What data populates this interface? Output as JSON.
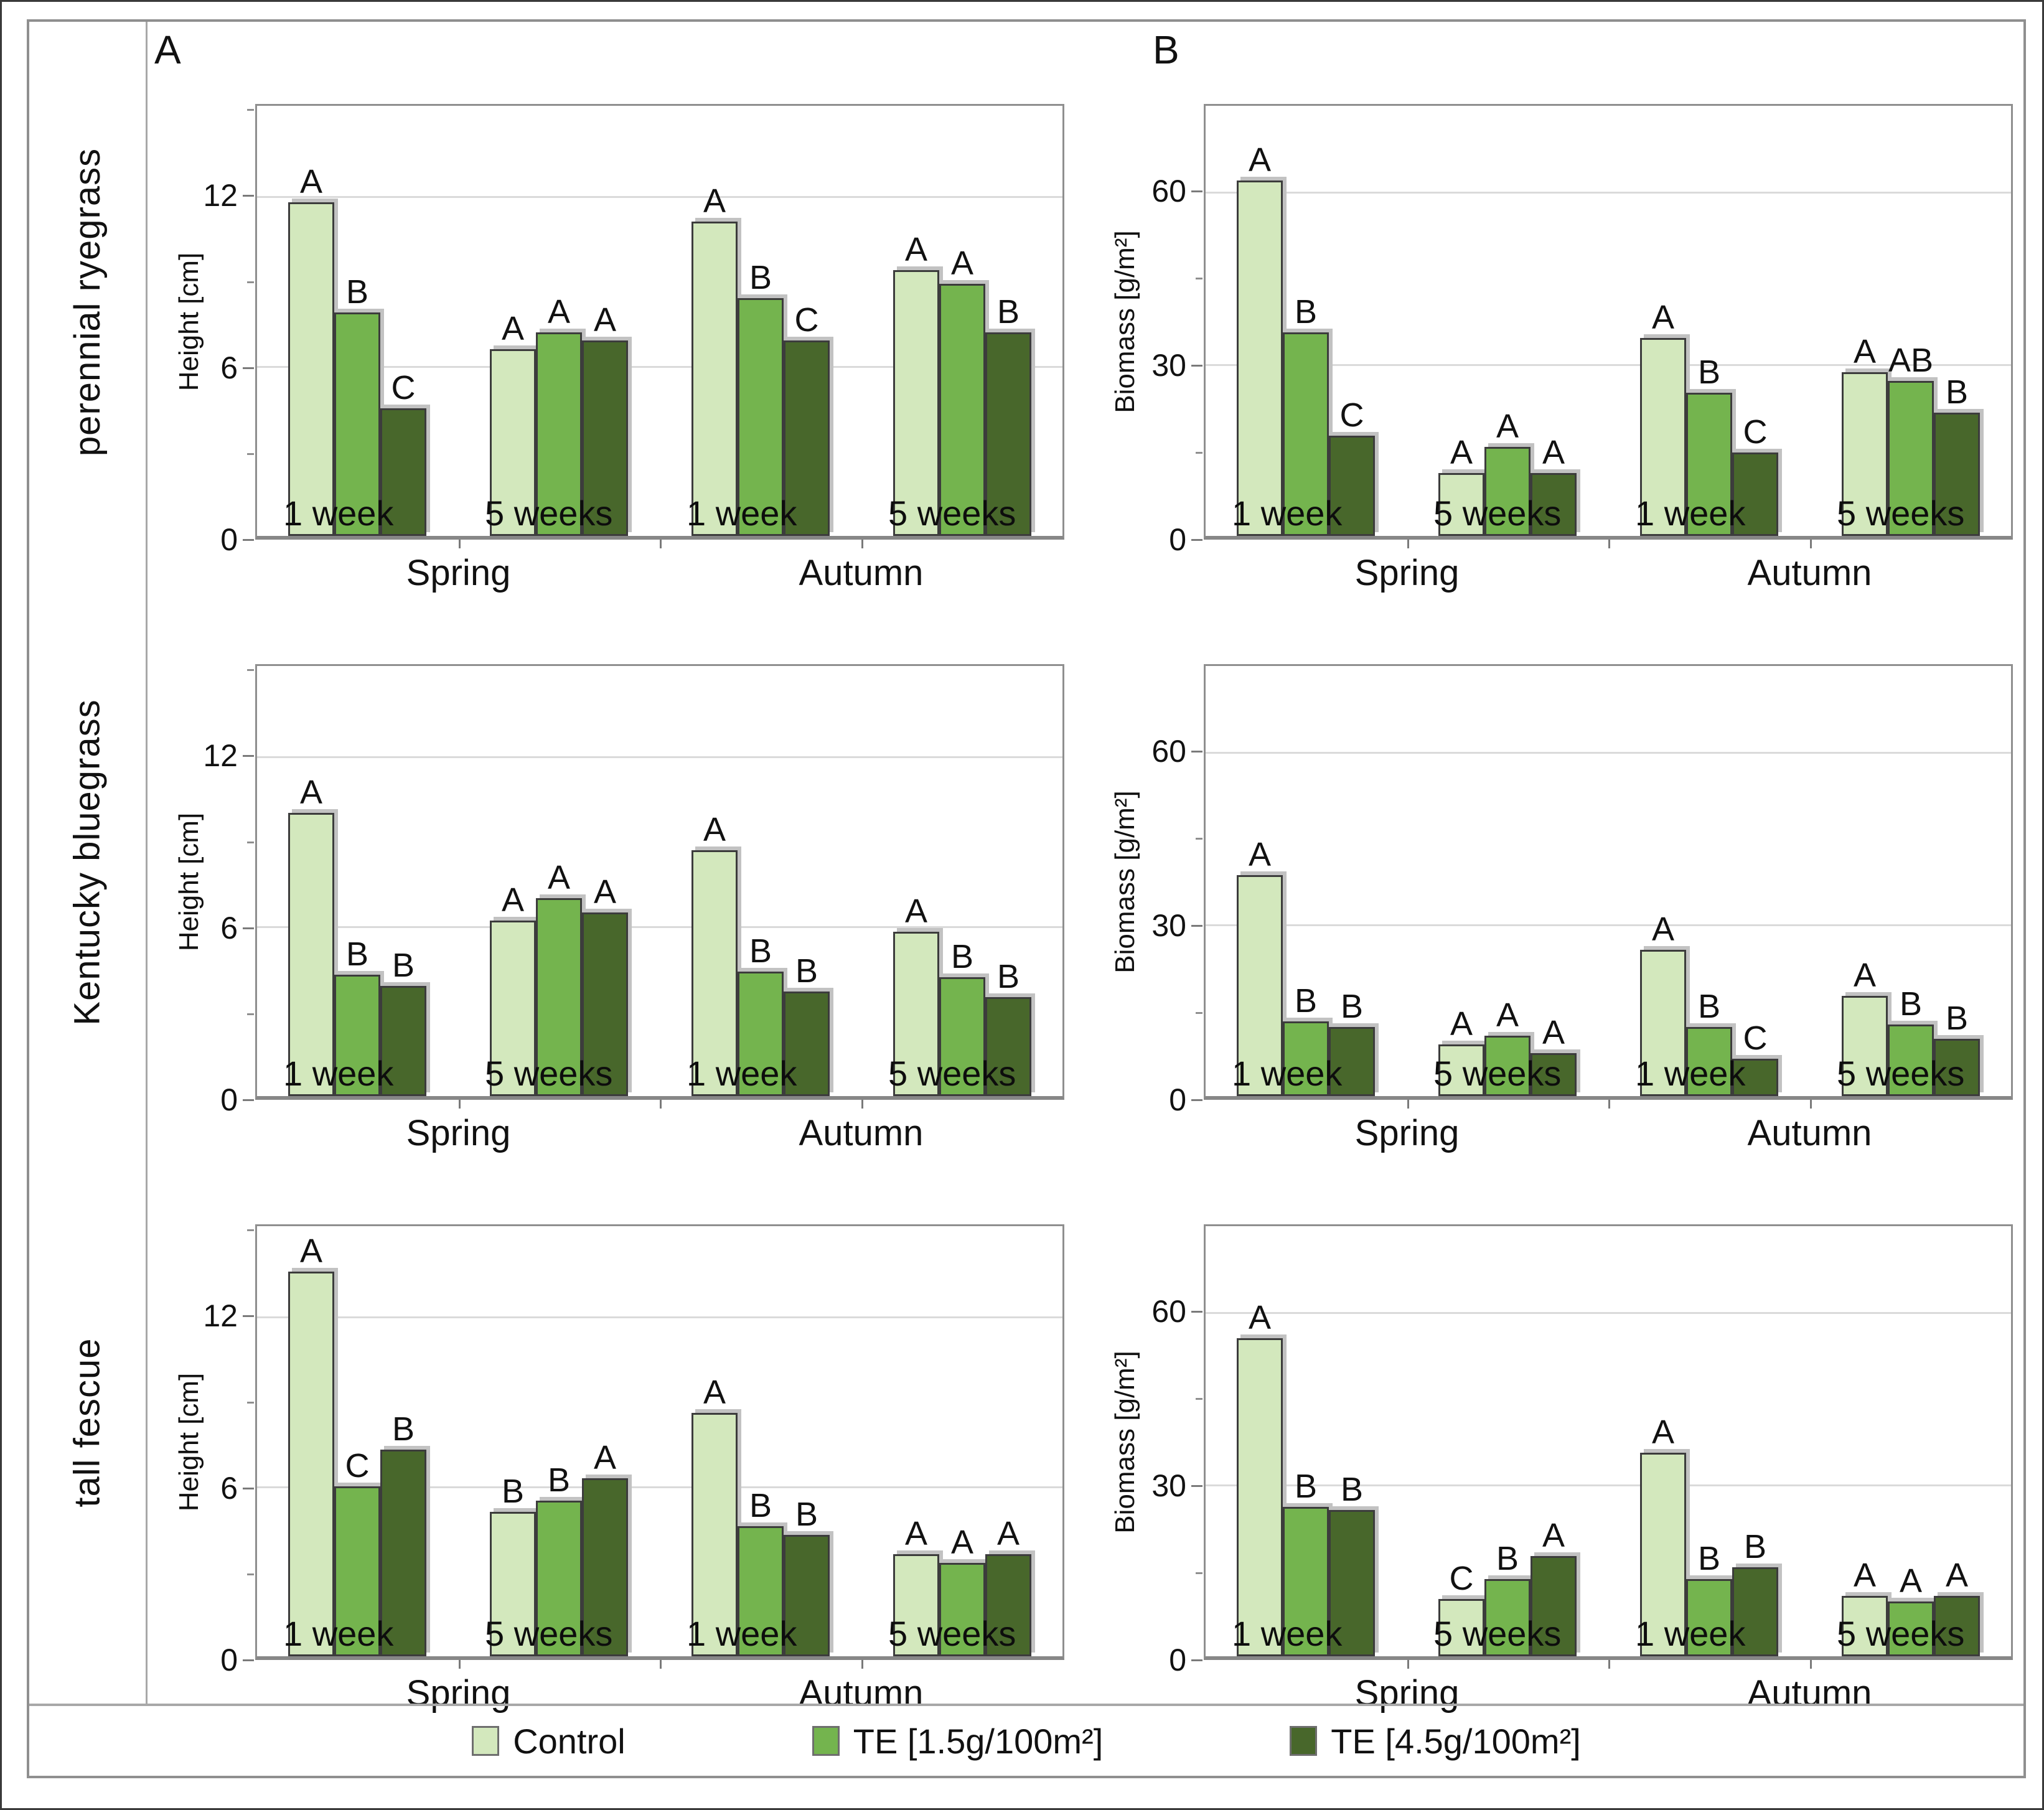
{
  "figure": {
    "panel_labels": [
      "A",
      "B"
    ],
    "species": [
      "perennial ryegrass",
      "Kentucky bluegrass",
      "tall fescue"
    ],
    "season_labels": [
      "Spring",
      "Autumn"
    ],
    "group_labels": [
      "1 week",
      "5 weeks",
      "1 week",
      "5 weeks"
    ],
    "series": [
      {
        "key": "control",
        "label": "Control",
        "color": "#d3e8bd"
      },
      {
        "key": "te15",
        "label": "TE [1.5g/100m²]",
        "color": "#74b44e"
      },
      {
        "key": "te45",
        "label": "TE [4.5g/100m²]",
        "color": "#48672b"
      }
    ],
    "grid_color": "#dadada",
    "bar_border_color": "#3c3c3c"
  },
  "chart_data": [
    {
      "type": "bar",
      "panel": "A",
      "row": "perennial ryegrass",
      "ylabel": "Height [cm]",
      "ylim": [
        0,
        15.2
      ],
      "yticks": [
        12,
        6,
        0
      ],
      "yticks_minor": [
        15,
        9,
        3
      ],
      "categories": [
        "Spring 1 week",
        "Spring 5 weeks",
        "Autumn 1 week",
        "Autumn 5 weeks"
      ],
      "series": [
        {
          "name": "Control",
          "values": [
            11.8,
            6.6,
            11.1,
            9.4
          ]
        },
        {
          "name": "TE [1.5g/100m²]",
          "values": [
            7.9,
            7.2,
            8.4,
            8.9
          ]
        },
        {
          "name": "TE [4.5g/100m²]",
          "values": [
            4.5,
            6.9,
            6.9,
            7.2
          ]
        }
      ],
      "sig_letters": [
        [
          "A",
          "B",
          "C"
        ],
        [
          "A",
          "A",
          "A"
        ],
        [
          "A",
          "B",
          "C"
        ],
        [
          "A",
          "A",
          "B"
        ]
      ]
    },
    {
      "type": "bar",
      "panel": "B",
      "row": "perennial ryegrass",
      "ylabel": "Biomass [g/m²]",
      "ylim": [
        0,
        75
      ],
      "yticks": [
        60,
        30,
        0
      ],
      "yticks_minor": [
        45,
        15
      ],
      "categories": [
        "Spring 1 week",
        "Spring 5 weeks",
        "Autumn 1 week",
        "Autumn 5 weeks"
      ],
      "series": [
        {
          "name": "Control",
          "values": [
            62,
            11,
            34.5,
            28.5
          ]
        },
        {
          "name": "TE [1.5g/100m²]",
          "values": [
            35.5,
            15.5,
            25,
            27
          ]
        },
        {
          "name": "TE [4.5g/100m²]",
          "values": [
            17.5,
            11,
            14.5,
            21.5
          ]
        }
      ],
      "sig_letters": [
        [
          "A",
          "B",
          "C"
        ],
        [
          "A",
          "A",
          "A"
        ],
        [
          "A",
          "B",
          "C"
        ],
        [
          "A",
          "AB",
          "B"
        ]
      ]
    },
    {
      "type": "bar",
      "panel": "A",
      "row": "Kentucky bluegrass",
      "ylabel": "Height [cm]",
      "ylim": [
        0,
        15.2
      ],
      "yticks": [
        12,
        6,
        0
      ],
      "yticks_minor": [
        15,
        9,
        3
      ],
      "categories": [
        "Spring 1 week",
        "Spring 5 weeks",
        "Autumn 1 week",
        "Autumn 5 weeks"
      ],
      "series": [
        {
          "name": "Control",
          "values": [
            10,
            6.2,
            8.7,
            5.8
          ]
        },
        {
          "name": "TE [1.5g/100m²]",
          "values": [
            4.3,
            7,
            4.4,
            4.2
          ]
        },
        {
          "name": "TE [4.5g/100m²]",
          "values": [
            3.9,
            6.5,
            3.7,
            3.5
          ]
        }
      ],
      "sig_letters": [
        [
          "A",
          "B",
          "B"
        ],
        [
          "A",
          "A",
          "A"
        ],
        [
          "A",
          "B",
          "B"
        ],
        [
          "A",
          "B",
          "B"
        ]
      ]
    },
    {
      "type": "bar",
      "panel": "B",
      "row": "Kentucky bluegrass",
      "ylabel": "Biomass [g/m²]",
      "ylim": [
        0,
        75
      ],
      "yticks": [
        60,
        30,
        0
      ],
      "yticks_minor": [
        45,
        15
      ],
      "categories": [
        "Spring 1 week",
        "Spring 5 weeks",
        "Autumn 1 week",
        "Autumn 5 weeks"
      ],
      "series": [
        {
          "name": "Control",
          "values": [
            38.5,
            9,
            25.5,
            17.5
          ]
        },
        {
          "name": "TE [1.5g/100m²]",
          "values": [
            13,
            10.5,
            12,
            12.5
          ]
        },
        {
          "name": "TE [4.5g/100m²]",
          "values": [
            12,
            7.5,
            6.5,
            10
          ]
        }
      ],
      "sig_letters": [
        [
          "A",
          "B",
          "B"
        ],
        [
          "A",
          "A",
          "A"
        ],
        [
          "A",
          "B",
          "C"
        ],
        [
          "A",
          "B",
          "B"
        ]
      ]
    },
    {
      "type": "bar",
      "panel": "A",
      "row": "tall fescue",
      "ylabel": "Height [cm]",
      "ylim": [
        0,
        15.2
      ],
      "yticks": [
        12,
        6,
        0
      ],
      "yticks_minor": [
        15,
        9,
        3
      ],
      "categories": [
        "Spring 1 week",
        "Spring 5 weeks",
        "Autumn 1 week",
        "Autumn 5 weeks"
      ],
      "series": [
        {
          "name": "Control",
          "values": [
            13.6,
            5.1,
            8.6,
            3.6
          ]
        },
        {
          "name": "TE [1.5g/100m²]",
          "values": [
            6,
            5.5,
            4.6,
            3.3
          ]
        },
        {
          "name": "TE [4.5g/100m²]",
          "values": [
            7.3,
            6.3,
            4.3,
            3.6
          ]
        }
      ],
      "sig_letters": [
        [
          "A",
          "C",
          "B"
        ],
        [
          "B",
          "B",
          "A"
        ],
        [
          "A",
          "B",
          "B"
        ],
        [
          "A",
          "A",
          "A"
        ]
      ]
    },
    {
      "type": "bar",
      "panel": "B",
      "row": "tall fescue",
      "ylabel": "Biomass [g/m²]",
      "ylim": [
        0,
        75
      ],
      "yticks": [
        60,
        30,
        0
      ],
      "yticks_minor": [
        45,
        15
      ],
      "categories": [
        "Spring 1 week",
        "Spring 5 weeks",
        "Autumn 1 week",
        "Autumn 5 weeks"
      ],
      "series": [
        {
          "name": "Control",
          "values": [
            55.5,
            10,
            35.5,
            10.5
          ]
        },
        {
          "name": "TE [1.5g/100m²]",
          "values": [
            26,
            13.5,
            13.5,
            9.5
          ]
        },
        {
          "name": "TE [4.5g/100m²]",
          "values": [
            25.5,
            17.5,
            15.5,
            10.5
          ]
        }
      ],
      "sig_letters": [
        [
          "A",
          "B",
          "B"
        ],
        [
          "C",
          "B",
          "A"
        ],
        [
          "A",
          "B",
          "B"
        ],
        [
          "A",
          "A",
          "A"
        ]
      ]
    }
  ]
}
